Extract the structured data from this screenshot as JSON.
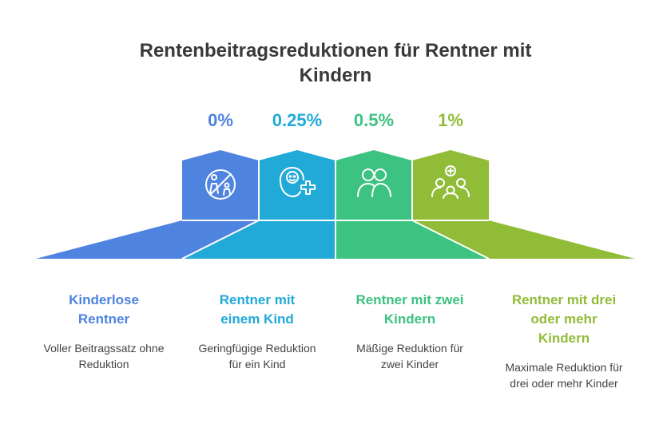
{
  "title": {
    "line1": "Rentenbeitragsreduktionen für Rentner mit",
    "line2": "Kindern"
  },
  "colors": {
    "col1": "#4e83e0",
    "col2": "#21a9d8",
    "col3": "#3cc281",
    "col4": "#91bc38",
    "title": "#3a3a3a",
    "text": "#444444"
  },
  "columns": [
    {
      "percentage": "0%",
      "heading_lines": [
        "Kinderlose",
        "Rentner"
      ],
      "desc_lines": [
        "Voller Beitragssatz ohne",
        "Reduktion"
      ],
      "icon": "no-children-icon"
    },
    {
      "percentage": "0.25%",
      "heading_lines": [
        "Rentner mit",
        "einem Kind"
      ],
      "desc_lines": [
        "Geringfügige Reduktion",
        "für ein Kind"
      ],
      "icon": "baby-plus-icon"
    },
    {
      "percentage": "0.5%",
      "heading_lines": [
        "Rentner mit zwei",
        "Kindern"
      ],
      "desc_lines": [
        "Mäßige Reduktion für",
        "zwei Kinder"
      ],
      "icon": "two-people-icon"
    },
    {
      "percentage": "1%",
      "heading_lines": [
        "Rentner mit drei",
        "oder mehr",
        "Kindern"
      ],
      "desc_lines": [
        "Maximale Reduktion für",
        "drei oder mehr Kinder"
      ],
      "icon": "family-plus-icon"
    }
  ]
}
